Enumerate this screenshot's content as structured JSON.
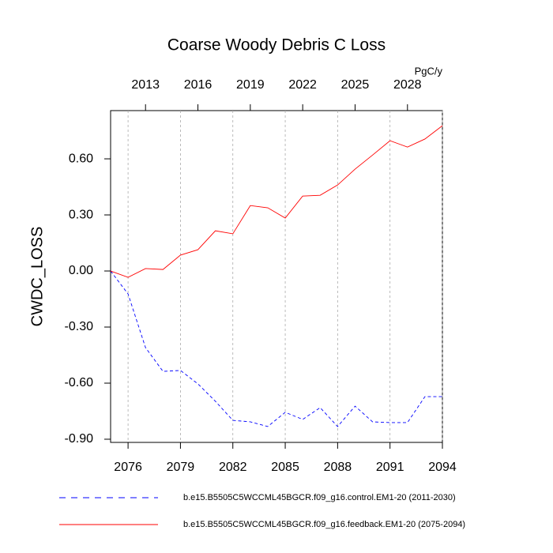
{
  "chart_data": {
    "type": "line",
    "title": "Coarse Woody Debris C Loss",
    "units": "PgC/y",
    "y_label": "CWDC_LOSS",
    "x": [
      2075,
      2076,
      2077,
      2078,
      2079,
      2080,
      2081,
      2082,
      2083,
      2084,
      2085,
      2086,
      2087,
      2088,
      2089,
      2090,
      2091,
      2092,
      2093,
      2094
    ],
    "x2": [
      2011,
      2012,
      2013,
      2014,
      2015,
      2016,
      2017,
      2018,
      2019,
      2020,
      2021,
      2022,
      2023,
      2024,
      2025,
      2026,
      2027,
      2028,
      2029,
      2030
    ],
    "xlim": [
      2075,
      2094
    ],
    "xticks": [
      2076,
      2079,
      2082,
      2085,
      2088,
      2091,
      2094
    ],
    "x_tick_color": "#ff0000",
    "x2lim": [
      2011,
      2030
    ],
    "x2ticks": [
      2013,
      2016,
      2019,
      2022,
      2025,
      2028
    ],
    "x2_tick_color": "#0000ff",
    "ylim": [
      -0.917,
      0.858
    ],
    "yticks": [
      {
        "value": -0.9,
        "label": "-0.90"
      },
      {
        "value": -0.6,
        "label": "-0.60"
      },
      {
        "value": -0.3,
        "label": "-0.30"
      },
      {
        "value": 0,
        "label": "0.00"
      },
      {
        "value": 0.3,
        "label": "0.30"
      },
      {
        "value": 0.6,
        "label": "0.60"
      }
    ],
    "grid": true,
    "series": [
      {
        "name": "b.e15.B5505C5WCCML45BGCR.f09_g16.control.EM1-20 (2011-2030)",
        "color": "#0000ff",
        "dash": true,
        "axis": "x2",
        "values": [
          0.0,
          -0.123,
          -0.41,
          -0.537,
          -0.532,
          -0.604,
          -0.697,
          -0.799,
          -0.807,
          -0.832,
          -0.756,
          -0.794,
          -0.731,
          -0.832,
          -0.723,
          -0.807,
          -0.811,
          -0.811,
          -0.672,
          -0.672
        ]
      },
      {
        "name": "b.e15.B5505C5WCCML45BGCR.f09_g16.feedback.EM1-20 (2075-2094)",
        "color": "#ff0000",
        "dash": false,
        "values": [
          0.0,
          -0.034,
          0.013,
          0.008,
          0.085,
          0.114,
          0.215,
          0.199,
          0.35,
          0.338,
          0.283,
          0.401,
          0.405,
          0.46,
          0.545,
          0.62,
          0.697,
          0.663,
          0.706,
          0.777
        ]
      }
    ]
  }
}
